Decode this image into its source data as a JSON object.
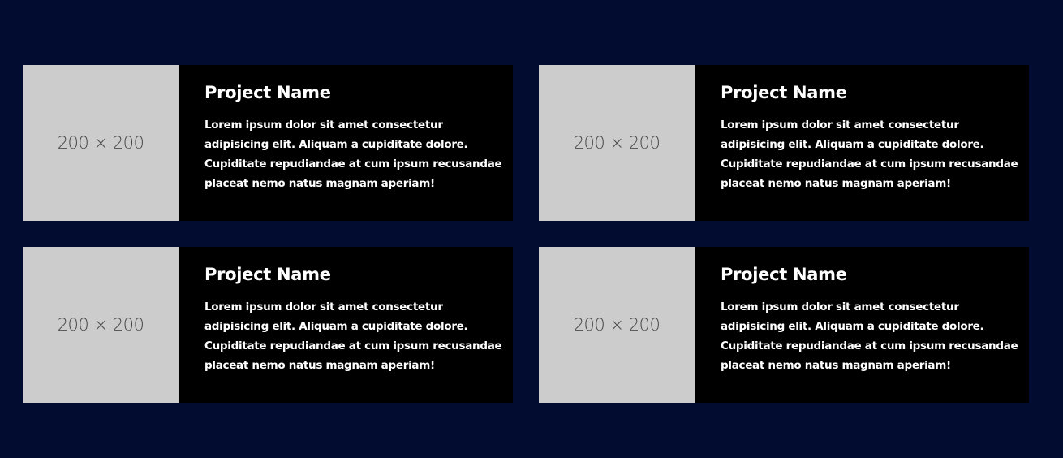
{
  "projects": [
    {
      "image_label": "200 × 200",
      "title": "Project Name",
      "description": "Lorem ipsum dolor sit amet consectetur adipisicing elit. Aliquam a cupiditate dolore. Cupiditate repudiandae at cum ipsum recusandae placeat nemo natus magnam aperiam!"
    },
    {
      "image_label": "200 × 200",
      "title": "Project Name",
      "description": "Lorem ipsum dolor sit amet consectetur adipisicing elit. Aliquam a cupiditate dolore. Cupiditate repudiandae at cum ipsum recusandae placeat nemo natus magnam aperiam!"
    },
    {
      "image_label": "200 × 200",
      "title": "Project Name",
      "description": "Lorem ipsum dolor sit amet consectetur adipisicing elit. Aliquam a cupiditate dolore. Cupiditate repudiandae at cum ipsum recusandae placeat nemo natus magnam aperiam!"
    },
    {
      "image_label": "200 × 200",
      "title": "Project Name",
      "description": "Lorem ipsum dolor sit amet consectetur adipisicing elit. Aliquam a cupiditate dolore. Cupiditate repudiandae at cum ipsum recusandae placeat nemo natus magnam aperiam!"
    }
  ]
}
